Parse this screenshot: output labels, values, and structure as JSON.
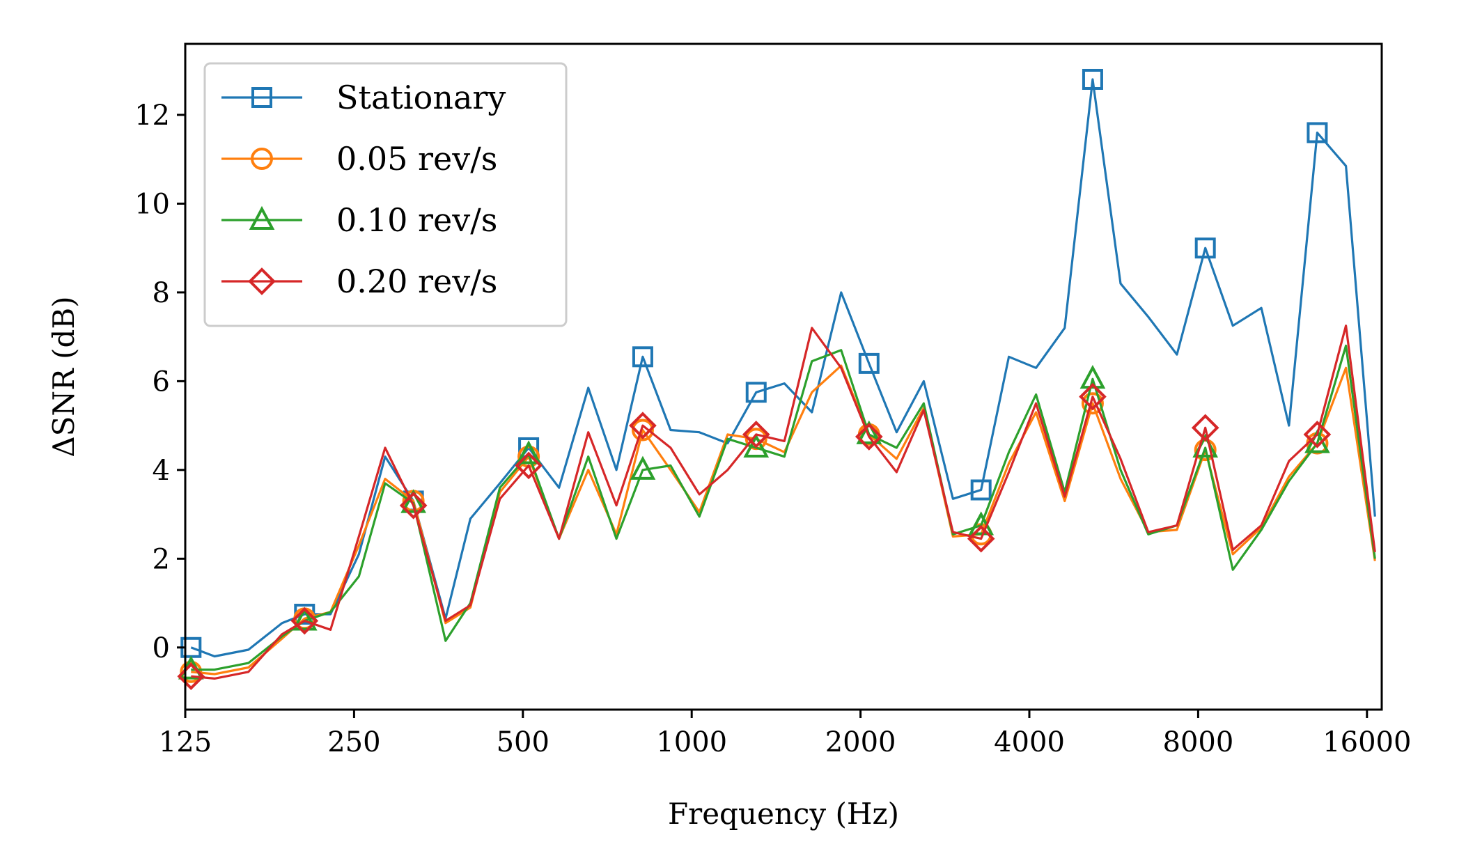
{
  "chart_data": {
    "type": "line",
    "title": "",
    "xlabel": "Frequency (Hz)",
    "ylabel": "ΔSNR (dB)",
    "xscale": "log2",
    "xlim": [
      125,
      17000
    ],
    "ylim": [
      -1.4,
      13.6
    ],
    "xticks": [
      125,
      250,
      500,
      1000,
      2000,
      4000,
      8000,
      16000
    ],
    "xtick_labels": [
      "125",
      "250",
      "500",
      "1000",
      "2000",
      "4000",
      "8000",
      "16000"
    ],
    "yticks": [
      0,
      2,
      4,
      6,
      8,
      10,
      12
    ],
    "ytick_labels": [
      "0",
      "2",
      "4",
      "6",
      "8",
      "10",
      "12"
    ],
    "grid": false,
    "legend_position": "top-left",
    "x": [
      128,
      141,
      162,
      186,
      204,
      227,
      255,
      284,
      319,
      364,
      403,
      455,
      512,
      580,
      654,
      734,
      818,
      917,
      1032,
      1159,
      1303,
      1463,
      1638,
      1847,
      2071,
      2319,
      2593,
      2923,
      3281,
      3678,
      4111,
      4625,
      5188,
      5818,
      6518,
      7332,
      8239,
      9225,
      10368,
      11616,
      13046,
      14675,
      16533
    ],
    "series": [
      {
        "name": "Stationary",
        "color": "#1f77b4",
        "marker": "square",
        "marker_every": 4,
        "values": [
          0.0,
          -0.2,
          -0.05,
          0.55,
          0.75,
          0.75,
          2.1,
          4.3,
          3.3,
          0.65,
          2.9,
          3.7,
          4.5,
          3.6,
          5.85,
          4.0,
          6.55,
          4.9,
          4.85,
          4.6,
          5.75,
          5.95,
          5.3,
          8.0,
          6.4,
          4.85,
          6.0,
          3.35,
          3.55,
          6.55,
          6.3,
          7.2,
          12.8,
          8.2,
          7.45,
          6.6,
          9.0,
          7.25,
          7.65,
          5.0,
          11.6,
          10.85,
          2.95
        ]
      },
      {
        "name": "0.05 rev/s",
        "color": "#ff7f0e",
        "marker": "circle",
        "marker_every": 4,
        "values": [
          -0.55,
          -0.6,
          -0.45,
          0.2,
          0.65,
          0.8,
          2.3,
          3.8,
          3.3,
          0.55,
          0.9,
          3.5,
          4.3,
          2.45,
          4.0,
          2.55,
          4.9,
          4.0,
          3.05,
          4.8,
          4.7,
          4.4,
          5.75,
          6.35,
          4.8,
          4.25,
          5.4,
          2.5,
          2.55,
          4.15,
          5.3,
          3.3,
          5.5,
          3.8,
          2.6,
          2.65,
          4.45,
          2.1,
          2.7,
          3.85,
          4.6,
          6.3,
          1.95
        ]
      },
      {
        "name": "0.10 rev/s",
        "color": "#2ca02c",
        "marker": "triangle",
        "marker_every": 4,
        "values": [
          -0.5,
          -0.5,
          -0.35,
          0.25,
          0.6,
          0.8,
          1.6,
          3.7,
          3.25,
          0.15,
          1.0,
          3.6,
          4.35,
          2.45,
          4.3,
          2.45,
          4.0,
          4.1,
          2.95,
          4.7,
          4.5,
          4.3,
          6.45,
          6.7,
          4.8,
          4.5,
          5.5,
          2.55,
          2.75,
          4.4,
          5.7,
          3.5,
          6.05,
          4.0,
          2.55,
          2.75,
          4.5,
          1.75,
          2.65,
          3.75,
          4.6,
          6.8,
          2.0
        ]
      },
      {
        "name": "0.20 rev/s",
        "color": "#d62728",
        "marker": "diamond",
        "marker_every": 4,
        "values": [
          -0.65,
          -0.7,
          -0.55,
          0.3,
          0.6,
          0.4,
          2.5,
          4.5,
          3.2,
          0.6,
          0.95,
          3.35,
          4.1,
          2.45,
          4.85,
          3.2,
          5.0,
          4.5,
          3.45,
          4.0,
          4.8,
          4.65,
          7.2,
          6.3,
          4.75,
          3.95,
          5.35,
          2.6,
          2.45,
          3.95,
          5.5,
          3.4,
          5.65,
          4.25,
          2.6,
          2.75,
          4.95,
          2.2,
          2.75,
          4.2,
          4.8,
          7.25,
          2.15
        ]
      }
    ]
  }
}
